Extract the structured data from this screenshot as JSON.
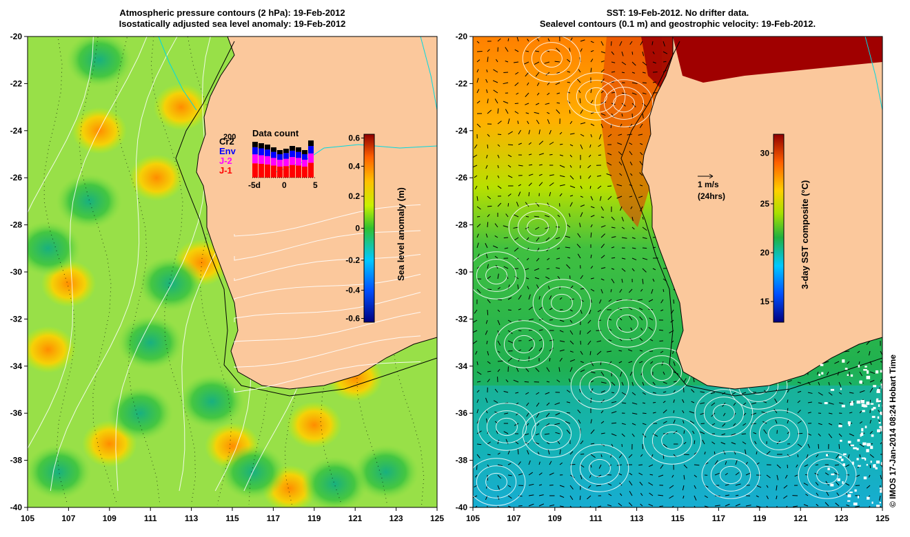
{
  "left_panel": {
    "title_line1": "Atmospheric pressure contours (2 hPa): 19-Feb-2012",
    "title_line2": "Isostatically adjusted sea level anomaly: 19-Feb-2012",
    "colorbar_label": "Sea level anomaly (m)",
    "colorbar_ticks": [
      "0.6",
      "0.4",
      "0.2",
      "0",
      "-0.2",
      "-0.4",
      "-0.6"
    ],
    "inset": {
      "title": "Data count",
      "max_label": "200",
      "legend": [
        {
          "label": "Cr2",
          "color": "#000000"
        },
        {
          "label": "Env",
          "color": "#0000ff"
        },
        {
          "label": "J-2",
          "color": "#ff00ff"
        },
        {
          "label": "J-1",
          "color": "#ff0000"
        }
      ],
      "x_ticks": [
        "-5d",
        "0",
        "5"
      ]
    }
  },
  "right_panel": {
    "title_line1": "SST: 19-Feb-2012. No drifter data.",
    "title_line2": "Sealevel contours (0.1 m) and geostrophic velocity: 19-Feb-2012.",
    "colorbar_label": "3-day SST composite (°C)",
    "colorbar_ticks": [
      "30",
      "25",
      "20",
      "15"
    ],
    "vector_scale_label": "1 m/s",
    "vector_scale_sub": "(24hrs)"
  },
  "axes": {
    "lat_ticks": [
      "-20",
      "-22",
      "-24",
      "-26",
      "-28",
      "-30",
      "-32",
      "-34",
      "-36",
      "-38",
      "-40"
    ],
    "lon_ticks": [
      "105",
      "107",
      "109",
      "111",
      "113",
      "115",
      "117",
      "119",
      "121",
      "123",
      "125"
    ]
  },
  "credit": "© IMOS 17-Jan-2014 08:24 Hobart Time",
  "colors": {
    "land": "#fbc89c",
    "coast_cyan": "#00d8e0",
    "sla_base": "#8ee04a",
    "sst_warm": "#a00000",
    "sst_cool": "#1ea8e8"
  }
}
